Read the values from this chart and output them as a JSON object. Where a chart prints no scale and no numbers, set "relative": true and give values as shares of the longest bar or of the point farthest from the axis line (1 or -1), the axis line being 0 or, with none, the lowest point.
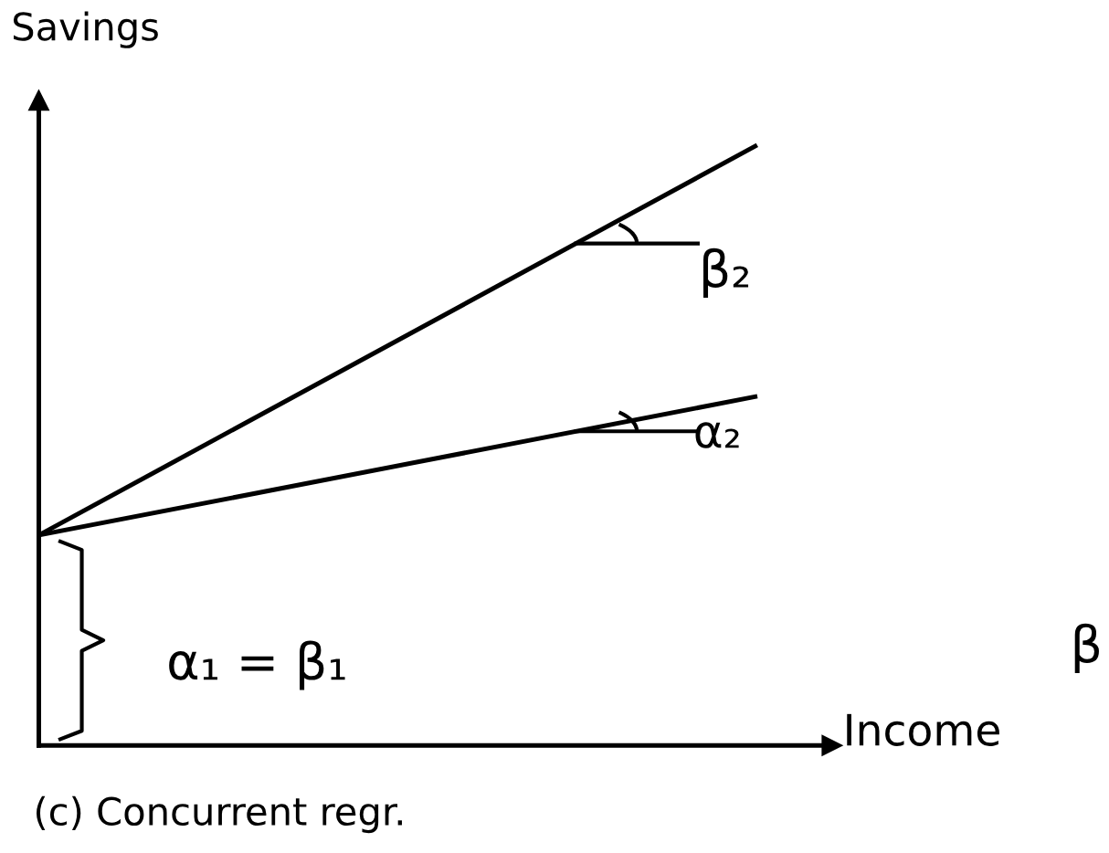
{
  "chart_data": {
    "type": "line",
    "relative": true,
    "xlabel": "Income",
    "ylabel": "Savings",
    "categories": [
      null,
      null
    ],
    "series": [
      {
        "color": "#000000",
        "values": [
          0.351,
          1.0
        ]
      },
      {
        "color": "#000000",
        "values": [
          0.351,
          0.582
        ]
      }
    ],
    "annotations": [
      "β₂",
      "α₂",
      "α₁ = β₁",
      "β",
      "(c) Concurrent regr."
    ],
    "marker": "none",
    "line_style": "solid"
  }
}
